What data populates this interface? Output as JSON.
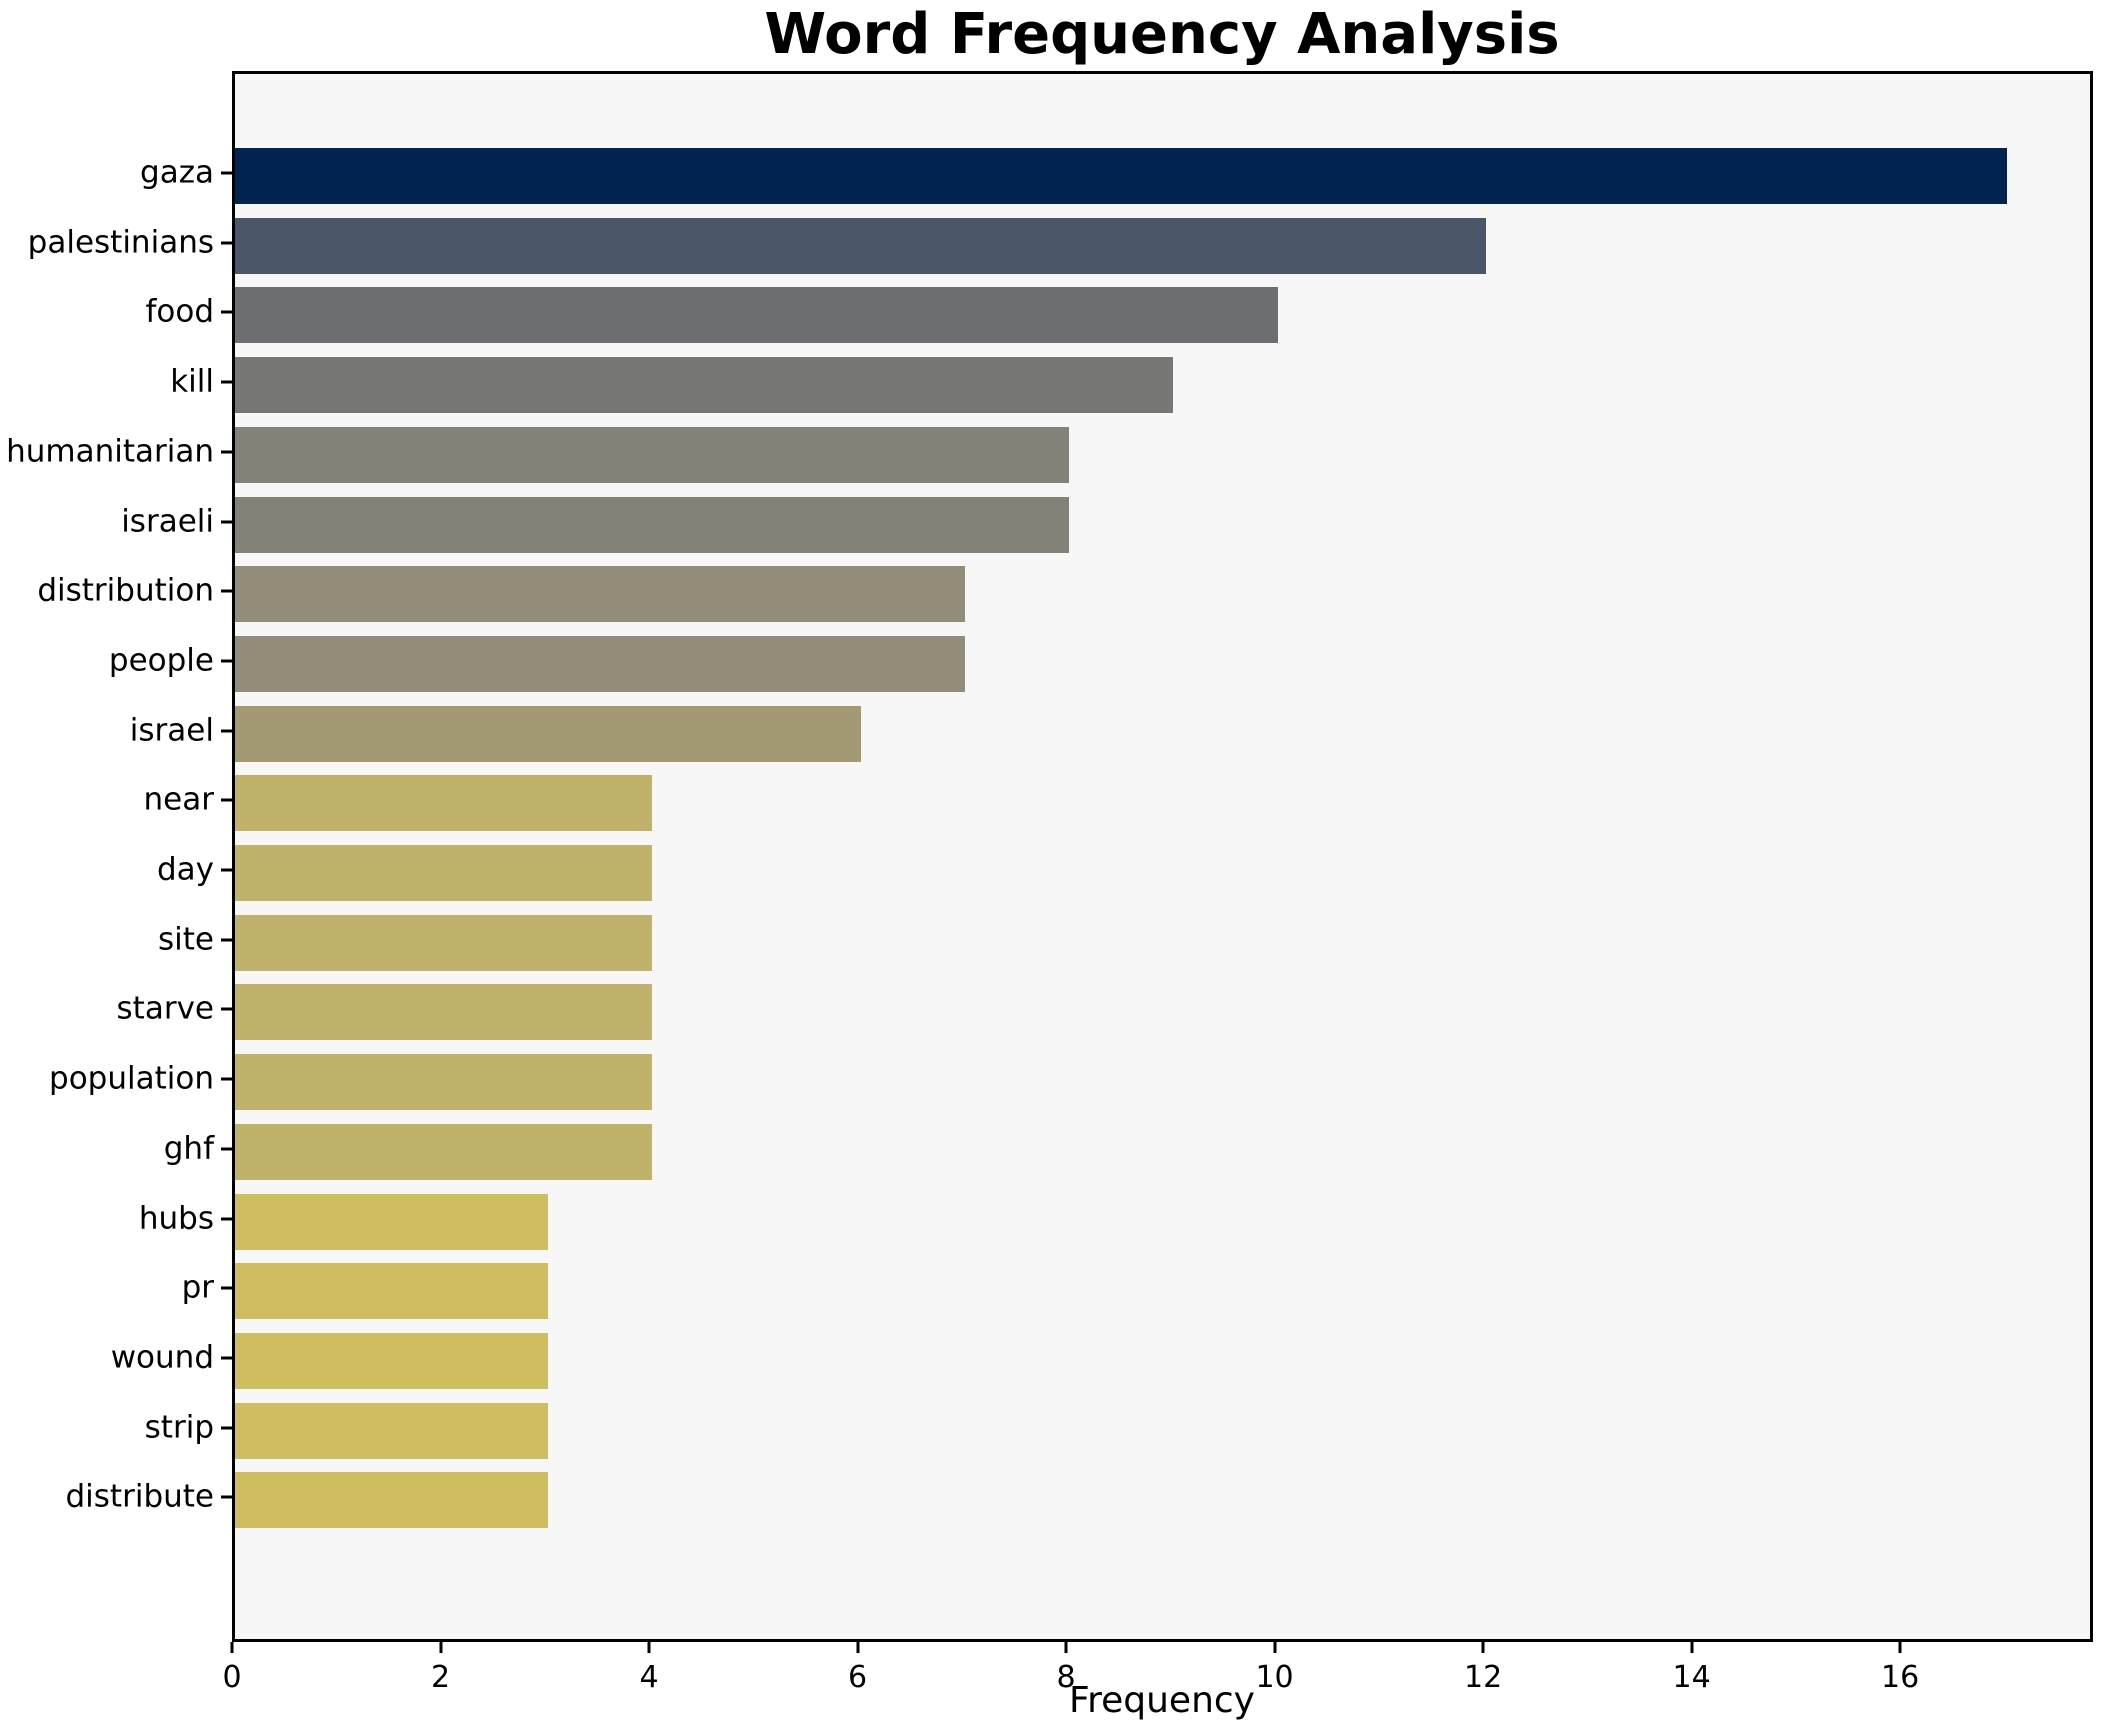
{
  "chart_data": {
    "type": "bar",
    "orientation": "horizontal",
    "title": "Word Frequency Analysis",
    "xlabel": "Frequency",
    "ylabel": "",
    "categories": [
      "gaza",
      "palestinians",
      "food",
      "kill",
      "humanitarian",
      "israeli",
      "distribution",
      "people",
      "israel",
      "near",
      "day",
      "site",
      "starve",
      "population",
      "ghf",
      "hubs",
      "pr",
      "wound",
      "strip",
      "distribute"
    ],
    "values": [
      17,
      12,
      10,
      9,
      8,
      8,
      7,
      7,
      6,
      4,
      4,
      4,
      4,
      4,
      4,
      3,
      3,
      3,
      3,
      3
    ],
    "bar_colors": [
      "#00234f",
      "#4c5669",
      "#6d6e72",
      "#777776",
      "#848177",
      "#848177",
      "#928c78",
      "#928c78",
      "#a39a73",
      "#c0b26a",
      "#c0b26a",
      "#c0b26a",
      "#c0b26a",
      "#c0b26a",
      "#c0b26a",
      "#cfbe5f",
      "#cfbe5f",
      "#cfbe5f",
      "#cfbe5f",
      "#cfbe5f"
    ],
    "xlim": [
      0,
      17.85
    ],
    "xticks": [
      0,
      2,
      4,
      6,
      8,
      10,
      12,
      14,
      16
    ],
    "grid": false,
    "legend": null,
    "plot_background": "#f7f7f7",
    "figure_background": "#ffffff",
    "spine_color": "#000000",
    "text_color": "#000000"
  }
}
